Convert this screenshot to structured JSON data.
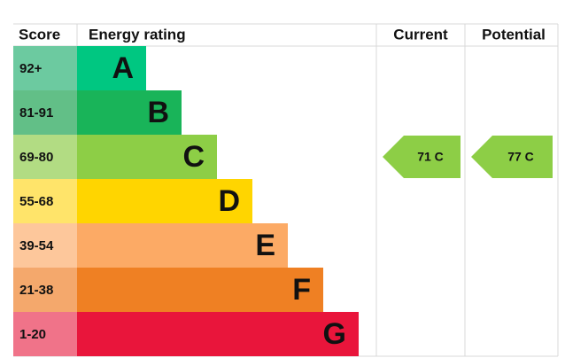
{
  "header": {
    "score": "Score",
    "rating": "Energy rating",
    "current": "Current",
    "potential": "Potential"
  },
  "bands": [
    {
      "score": "92+",
      "letter": "A",
      "color": "#00c781",
      "light": "#6ccaa0"
    },
    {
      "score": "81-91",
      "letter": "B",
      "color": "#19b459",
      "light": "#62bf87"
    },
    {
      "score": "69-80",
      "letter": "C",
      "color": "#8dce46",
      "light": "#b2dc83"
    },
    {
      "score": "55-68",
      "letter": "D",
      "color": "#ffd500",
      "light": "#ffe46a"
    },
    {
      "score": "39-54",
      "letter": "E",
      "color": "#fcaa65",
      "light": "#fdc79b"
    },
    {
      "score": "21-38",
      "letter": "F",
      "color": "#ef8023",
      "light": "#f4a86c"
    },
    {
      "score": "1-20",
      "letter": "G",
      "color": "#e9153b",
      "light": "#f07389"
    }
  ],
  "current": "71 C",
  "potential": "77 C"
}
